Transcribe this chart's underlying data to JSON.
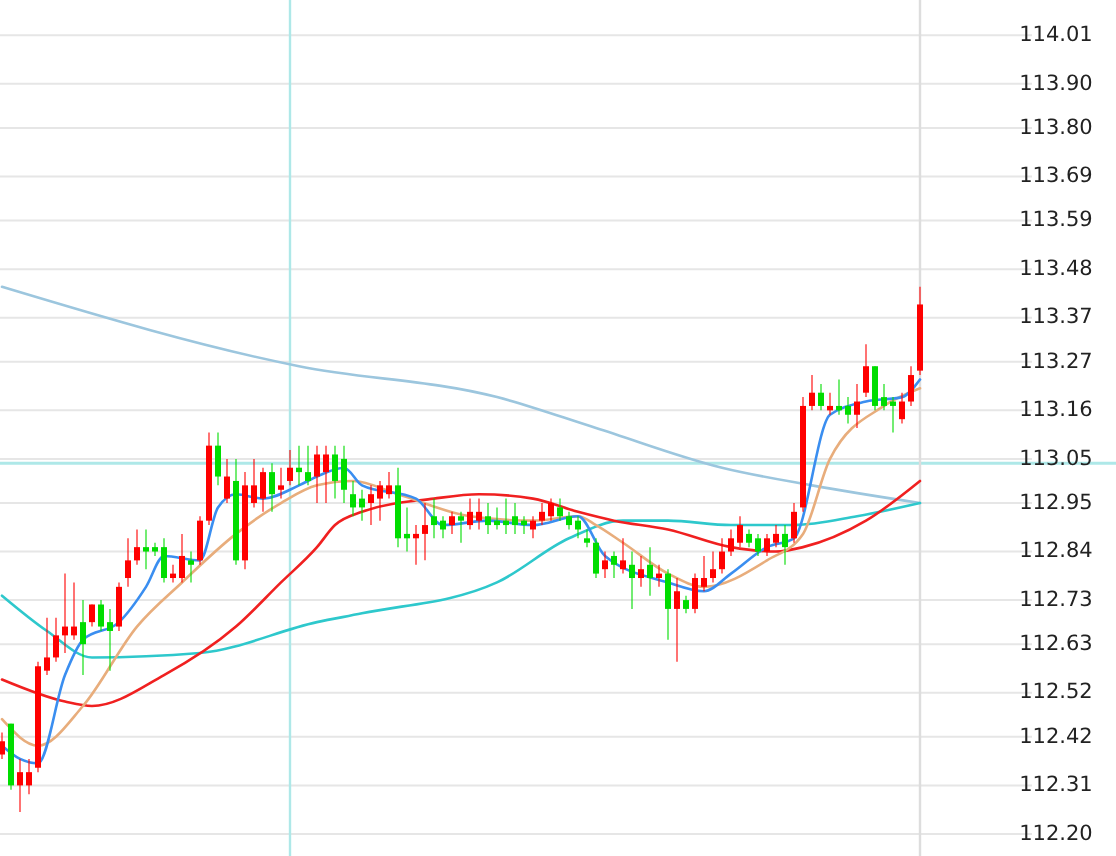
{
  "chart_data": {
    "type": "candlestick",
    "categories": [
      null,
      null,
      null,
      null,
      null,
      null,
      null,
      null,
      null,
      null,
      null,
      null,
      null,
      null,
      null,
      null,
      null,
      null,
      null,
      null,
      null,
      null,
      null,
      null,
      null,
      null,
      null,
      null,
      null,
      null,
      null,
      null,
      null,
      null,
      null,
      null,
      null,
      null,
      null,
      null,
      null,
      null,
      null,
      null,
      null,
      null,
      null,
      null,
      null,
      null,
      null,
      null,
      null,
      null,
      null,
      null,
      null,
      null,
      null,
      null,
      null,
      null,
      null,
      null,
      null,
      null,
      null,
      null,
      null,
      null,
      null,
      null,
      null,
      null,
      null,
      null,
      null,
      null,
      null,
      null,
      null,
      null,
      null,
      null,
      null,
      null,
      null,
      null,
      null,
      null,
      null,
      null,
      null,
      null,
      null,
      null,
      null,
      null,
      null,
      null,
      null,
      null,
      null
    ],
    "ohlc": [
      [
        112.38,
        112.43,
        112.37,
        112.41
      ],
      [
        112.45,
        112.45,
        112.3,
        112.31
      ],
      [
        112.31,
        112.37,
        112.25,
        112.34
      ],
      [
        112.31,
        112.37,
        112.29,
        112.34
      ],
      [
        112.35,
        112.59,
        112.34,
        112.58
      ],
      [
        112.57,
        112.69,
        112.56,
        112.6
      ],
      [
        112.6,
        112.69,
        112.59,
        112.65
      ],
      [
        112.65,
        112.79,
        112.61,
        112.67
      ],
      [
        112.65,
        112.77,
        112.64,
        112.67
      ],
      [
        112.68,
        112.73,
        112.56,
        112.63
      ],
      [
        112.68,
        112.72,
        112.67,
        112.72
      ],
      [
        112.72,
        112.73,
        112.66,
        112.67
      ],
      [
        112.68,
        112.71,
        112.57,
        112.66
      ],
      [
        112.67,
        112.77,
        112.66,
        112.76
      ],
      [
        112.78,
        112.87,
        112.76,
        112.82
      ],
      [
        112.82,
        112.89,
        112.81,
        112.85
      ],
      [
        112.85,
        112.89,
        112.8,
        112.84
      ],
      [
        112.85,
        112.86,
        112.83,
        112.84
      ],
      [
        112.85,
        112.87,
        112.77,
        112.78
      ],
      [
        112.78,
        112.81,
        112.77,
        112.79
      ],
      [
        112.78,
        112.88,
        112.77,
        112.83
      ],
      [
        112.82,
        112.84,
        112.77,
        112.81
      ],
      [
        112.82,
        112.92,
        112.81,
        112.91
      ],
      [
        112.91,
        113.11,
        112.9,
        113.08
      ],
      [
        113.08,
        113.11,
        112.99,
        113.01
      ],
      [
        112.96,
        113.05,
        112.95,
        113.01
      ],
      [
        113.0,
        113.05,
        112.81,
        112.82
      ],
      [
        112.82,
        113.02,
        112.8,
        112.99
      ],
      [
        112.95,
        113.05,
        112.94,
        112.99
      ],
      [
        112.96,
        113.03,
        112.93,
        113.02
      ],
      [
        113.02,
        113.04,
        112.93,
        112.97
      ],
      [
        112.98,
        113.03,
        112.96,
        112.99
      ],
      [
        113.0,
        113.07,
        112.99,
        113.03
      ],
      [
        113.03,
        113.08,
        112.99,
        113.02
      ],
      [
        113.02,
        113.08,
        112.99,
        113.0
      ],
      [
        113.01,
        113.08,
        112.95,
        113.06
      ],
      [
        113.02,
        113.08,
        112.95,
        113.06
      ],
      [
        113.06,
        113.08,
        112.96,
        113.0
      ],
      [
        113.05,
        113.08,
        112.95,
        112.98
      ],
      [
        112.97,
        113.0,
        112.92,
        112.94
      ],
      [
        112.96,
        112.98,
        112.91,
        112.94
      ],
      [
        112.95,
        112.99,
        112.9,
        112.97
      ],
      [
        112.96,
        113.0,
        112.91,
        112.99
      ],
      [
        112.97,
        113.02,
        112.96,
        112.99
      ],
      [
        112.99,
        113.03,
        112.85,
        112.87
      ],
      [
        112.88,
        112.94,
        112.84,
        112.87
      ],
      [
        112.87,
        112.9,
        112.81,
        112.88
      ],
      [
        112.88,
        112.95,
        112.82,
        112.9
      ],
      [
        112.92,
        112.96,
        112.87,
        112.9
      ],
      [
        112.91,
        112.92,
        112.87,
        112.89
      ],
      [
        112.9,
        112.93,
        112.88,
        112.92
      ],
      [
        112.92,
        112.93,
        112.86,
        112.91
      ],
      [
        112.9,
        112.96,
        112.89,
        112.93
      ],
      [
        112.91,
        112.96,
        112.89,
        112.93
      ],
      [
        112.92,
        112.95,
        112.88,
        112.9
      ],
      [
        112.91,
        112.94,
        112.89,
        112.9
      ],
      [
        112.91,
        112.96,
        112.88,
        112.9
      ],
      [
        112.92,
        112.95,
        112.88,
        112.9
      ],
      [
        112.91,
        112.92,
        112.88,
        112.9
      ],
      [
        112.89,
        112.92,
        112.87,
        112.91
      ],
      [
        112.91,
        112.95,
        112.9,
        112.93
      ],
      [
        112.92,
        112.96,
        112.91,
        112.95
      ],
      [
        112.94,
        112.96,
        112.91,
        112.92
      ],
      [
        112.92,
        112.93,
        112.89,
        112.9
      ],
      [
        112.91,
        112.92,
        112.87,
        112.89
      ],
      [
        112.87,
        112.89,
        112.85,
        112.86
      ],
      [
        112.86,
        112.87,
        112.78,
        112.79
      ],
      [
        112.8,
        112.84,
        112.78,
        112.82
      ],
      [
        112.83,
        112.84,
        112.78,
        112.81
      ],
      [
        112.8,
        112.87,
        112.79,
        112.82
      ],
      [
        112.81,
        112.84,
        112.71,
        112.78
      ],
      [
        112.78,
        112.83,
        112.76,
        112.8
      ],
      [
        112.81,
        112.85,
        112.74,
        112.78
      ],
      [
        112.78,
        112.81,
        112.76,
        112.79
      ],
      [
        112.79,
        112.8,
        112.64,
        112.71
      ],
      [
        112.71,
        112.78,
        112.59,
        112.75
      ],
      [
        112.73,
        112.74,
        112.7,
        112.71
      ],
      [
        112.71,
        112.79,
        112.7,
        112.78
      ],
      [
        112.76,
        112.83,
        112.75,
        112.78
      ],
      [
        112.78,
        112.84,
        112.77,
        112.8
      ],
      [
        112.8,
        112.87,
        112.79,
        112.84
      ],
      [
        112.84,
        112.89,
        112.83,
        112.87
      ],
      [
        112.86,
        112.92,
        112.85,
        112.9
      ],
      [
        112.88,
        112.89,
        112.85,
        112.86
      ],
      [
        112.87,
        112.88,
        112.83,
        112.84
      ],
      [
        112.84,
        112.88,
        112.83,
        112.87
      ],
      [
        112.86,
        112.9,
        112.85,
        112.88
      ],
      [
        112.88,
        112.9,
        112.81,
        112.85
      ],
      [
        112.87,
        112.95,
        112.86,
        112.93
      ],
      [
        112.94,
        113.19,
        112.93,
        113.17
      ],
      [
        113.17,
        113.24,
        113.16,
        113.2
      ],
      [
        113.2,
        113.22,
        113.16,
        113.17
      ],
      [
        113.16,
        113.2,
        113.15,
        113.17
      ],
      [
        113.17,
        113.23,
        113.15,
        113.16
      ],
      [
        113.17,
        113.19,
        113.13,
        113.15
      ],
      [
        113.15,
        113.22,
        113.12,
        113.18
      ],
      [
        113.2,
        113.31,
        113.19,
        113.26
      ],
      [
        113.26,
        113.26,
        113.16,
        113.17
      ],
      [
        113.19,
        113.22,
        113.16,
        113.17
      ],
      [
        113.18,
        113.19,
        113.11,
        113.17
      ],
      [
        113.14,
        113.2,
        113.13,
        113.18
      ],
      [
        113.18,
        113.26,
        113.17,
        113.24
      ],
      [
        113.25,
        113.44,
        113.24,
        113.4
      ]
    ],
    "colors": [
      "#ff0000",
      "#00dd00",
      "#ff0000",
      "#ff0000",
      "#ff0000",
      "#ff0000",
      "#ff0000",
      "#ff0000",
      "#ff0000",
      "#00dd00",
      "#ff0000",
      "#00dd00",
      "#00dd00",
      "#ff0000",
      "#ff0000",
      "#ff0000",
      "#00dd00",
      "#00dd00",
      "#00dd00",
      "#ff0000",
      "#ff0000",
      "#00dd00",
      "#ff0000",
      "#ff0000",
      "#00dd00",
      "#ff0000",
      "#00dd00",
      "#ff0000",
      "#ff0000",
      "#ff0000",
      "#00dd00",
      "#ff0000",
      "#ff0000",
      "#00dd00",
      "#00dd00",
      "#ff0000",
      "#ff0000",
      "#00dd00",
      "#00dd00",
      "#00dd00",
      "#00dd00",
      "#ff0000",
      "#ff0000",
      "#ff0000",
      "#00dd00",
      "#00dd00",
      "#ff0000",
      "#ff0000",
      "#00dd00",
      "#00dd00",
      "#ff0000",
      "#00dd00",
      "#ff0000",
      "#ff0000",
      "#00dd00",
      "#00dd00",
      "#00dd00",
      "#00dd00",
      "#00dd00",
      "#ff0000",
      "#ff0000",
      "#ff0000",
      "#00dd00",
      "#00dd00",
      "#00dd00",
      "#00dd00",
      "#00dd00",
      "#ff0000",
      "#00dd00",
      "#ff0000",
      "#00dd00",
      "#ff0000",
      "#00dd00",
      "#ff0000",
      "#00dd00",
      "#ff0000",
      "#00dd00",
      "#ff0000",
      "#ff0000",
      "#ff0000",
      "#ff0000",
      "#ff0000",
      "#ff0000",
      "#00dd00",
      "#00dd00",
      "#ff0000",
      "#ff0000",
      "#00dd00",
      "#ff0000",
      "#ff0000",
      "#ff0000",
      "#00dd00",
      "#ff0000",
      "#00dd00",
      "#00dd00",
      "#ff0000",
      "#ff0000",
      "#00dd00",
      "#00dd00",
      "#00dd00",
      "#ff0000",
      "#ff0000",
      "#ff0000"
    ],
    "series": [
      {
        "type": "line",
        "color": "#9cc6de",
        "values": [
          113.44,
          null,
          null,
          null,
          null,
          null,
          null,
          null,
          null,
          null,
          null,
          null,
          null,
          null,
          null,
          null,
          null,
          null,
          null,
          null,
          null,
          null,
          null,
          null,
          null,
          null,
          null,
          null,
          null,
          null,
          null,
          null,
          null,
          113.26,
          null,
          null,
          null,
          null,
          null,
          null,
          null,
          null,
          null,
          null,
          null,
          null,
          null,
          null,
          null,
          null,
          null,
          null,
          null,
          null,
          null,
          113.19,
          null,
          null,
          null,
          null,
          null,
          null,
          null,
          null,
          null,
          null,
          113.12,
          null,
          null,
          null,
          null,
          null,
          null,
          null,
          null,
          null,
          null,
          null,
          null,
          null,
          113.03,
          null,
          null,
          null,
          null,
          null,
          null,
          null,
          null,
          null,
          112.99,
          null,
          null,
          null,
          null,
          null,
          null,
          null,
          null,
          null,
          null,
          null,
          112.95
        ]
      },
      {
        "type": "line",
        "color": "#2ec8cc",
        "values": [
          112.74,
          null,
          null,
          null,
          null,
          112.66,
          null,
          null,
          null,
          null,
          112.6,
          null,
          null,
          null,
          null,
          null,
          null,
          null,
          null,
          null,
          null,
          null,
          112.61,
          null,
          null,
          null,
          null,
          null,
          null,
          null,
          null,
          null,
          null,
          null,
          null,
          112.68,
          null,
          null,
          null,
          null,
          112.7,
          null,
          null,
          null,
          null,
          null,
          null,
          null,
          null,
          null,
          null,
          null,
          null,
          null,
          null,
          112.77,
          null,
          null,
          null,
          null,
          null,
          null,
          null,
          112.87,
          null,
          null,
          null,
          null,
          null,
          112.91,
          null,
          null,
          null,
          null,
          112.91,
          null,
          null,
          null,
          null,
          null,
          null,
          112.9,
          null,
          null,
          null,
          null,
          null,
          null,
          112.9,
          null,
          null,
          null,
          null,
          null,
          null,
          112.92,
          null,
          null,
          null,
          null,
          null,
          null,
          112.95
        ]
      },
      {
        "type": "line",
        "color": "#f02020",
        "values": [
          112.55,
          null,
          null,
          null,
          null,
          null,
          null,
          112.5,
          null,
          null,
          112.49,
          null,
          null,
          null,
          null,
          null,
          null,
          null,
          112.56,
          null,
          null,
          null,
          null,
          null,
          null,
          null,
          112.67,
          null,
          null,
          null,
          null,
          112.77,
          null,
          null,
          null,
          112.85,
          null,
          112.9,
          null,
          null,
          112.93,
          null,
          null,
          null,
          null,
          null,
          null,
          null,
          112.96,
          null,
          null,
          null,
          null,
          112.97,
          null,
          null,
          null,
          null,
          null,
          112.96,
          null,
          null,
          null,
          null,
          112.93,
          null,
          null,
          null,
          112.91,
          null,
          null,
          null,
          null,
          null,
          112.89,
          null,
          null,
          null,
          null,
          null,
          null,
          112.85,
          null,
          null,
          null,
          null,
          112.84,
          null,
          null,
          112.85,
          null,
          null,
          null,
          null,
          null,
          null,
          112.91,
          null,
          null,
          null,
          null,
          null,
          113.0
        ]
      },
      {
        "type": "line",
        "color": "#e8ad7c",
        "values": [
          112.46,
          null,
          null,
          null,
          112.4,
          null,
          null,
          null,
          null,
          112.49,
          null,
          null,
          null,
          null,
          null,
          112.67,
          null,
          null,
          null,
          null,
          112.77,
          null,
          null,
          null,
          null,
          null,
          112.88,
          null,
          null,
          null,
          null,
          112.95,
          null,
          null,
          null,
          112.99,
          null,
          null,
          null,
          113.0,
          null,
          null,
          null,
          null,
          112.97,
          null,
          null,
          null,
          null,
          null,
          null,
          null,
          112.92,
          null,
          null,
          null,
          null,
          null,
          null,
          112.91,
          null,
          null,
          null,
          null,
          112.92,
          null,
          112.9,
          null,
          null,
          112.86,
          null,
          null,
          null,
          null,
          112.79,
          null,
          null,
          null,
          112.76,
          null,
          null,
          null,
          null,
          null,
          null,
          112.82,
          null,
          null,
          null,
          112.88,
          null,
          null,
          113.05,
          null,
          null,
          null,
          null,
          null,
          113.17,
          null,
          null,
          null,
          113.21
        ]
      },
      {
        "type": "line",
        "color": "#3a8ef0",
        "values": [
          112.4,
          null,
          112.37,
          null,
          112.36,
          null,
          null,
          112.56,
          null,
          112.64,
          null,
          null,
          null,
          112.68,
          null,
          null,
          112.76,
          null,
          112.83,
          null,
          null,
          null,
          112.82,
          null,
          112.94,
          null,
          112.97,
          null,
          null,
          112.96,
          null,
          null,
          null,
          112.99,
          null,
          113.01,
          null,
          null,
          113.03,
          null,
          112.99,
          null,
          null,
          null,
          null,
          null,
          112.96,
          null,
          null,
          112.9,
          null,
          null,
          null,
          null,
          112.91,
          null,
          null,
          null,
          null,
          112.9,
          null,
          null,
          null,
          null,
          112.92,
          null,
          null,
          112.83,
          null,
          null,
          null,
          null,
          null,
          null,
          112.77,
          null,
          null,
          null,
          112.75,
          null,
          null,
          112.79,
          null,
          null,
          null,
          112.85,
          null,
          null,
          112.87,
          null,
          null,
          null,
          113.15,
          null,
          null,
          null,
          113.18,
          null,
          null,
          null,
          113.19,
          null,
          113.23
        ]
      }
    ],
    "ylim": [
      112.15,
      114.09
    ],
    "yticks": [
      114.01,
      {
        "value": 113.9,
        "label": "113.90"
      },
      {
        "value": 113.8,
        "label": "113.80"
      },
      113.69,
      113.59,
      113.48,
      113.37,
      113.27,
      113.16,
      113.05,
      112.95,
      112.84,
      112.73,
      112.63,
      112.52,
      112.42,
      112.31,
      {
        "value": 112.2,
        "label": "112.20"
      }
    ],
    "grid": "y",
    "tick_labels": "y",
    "ref_lines": [
      {
        "axis": "y",
        "value": 113.04,
        "color": "#aee8e8"
      }
    ]
  }
}
